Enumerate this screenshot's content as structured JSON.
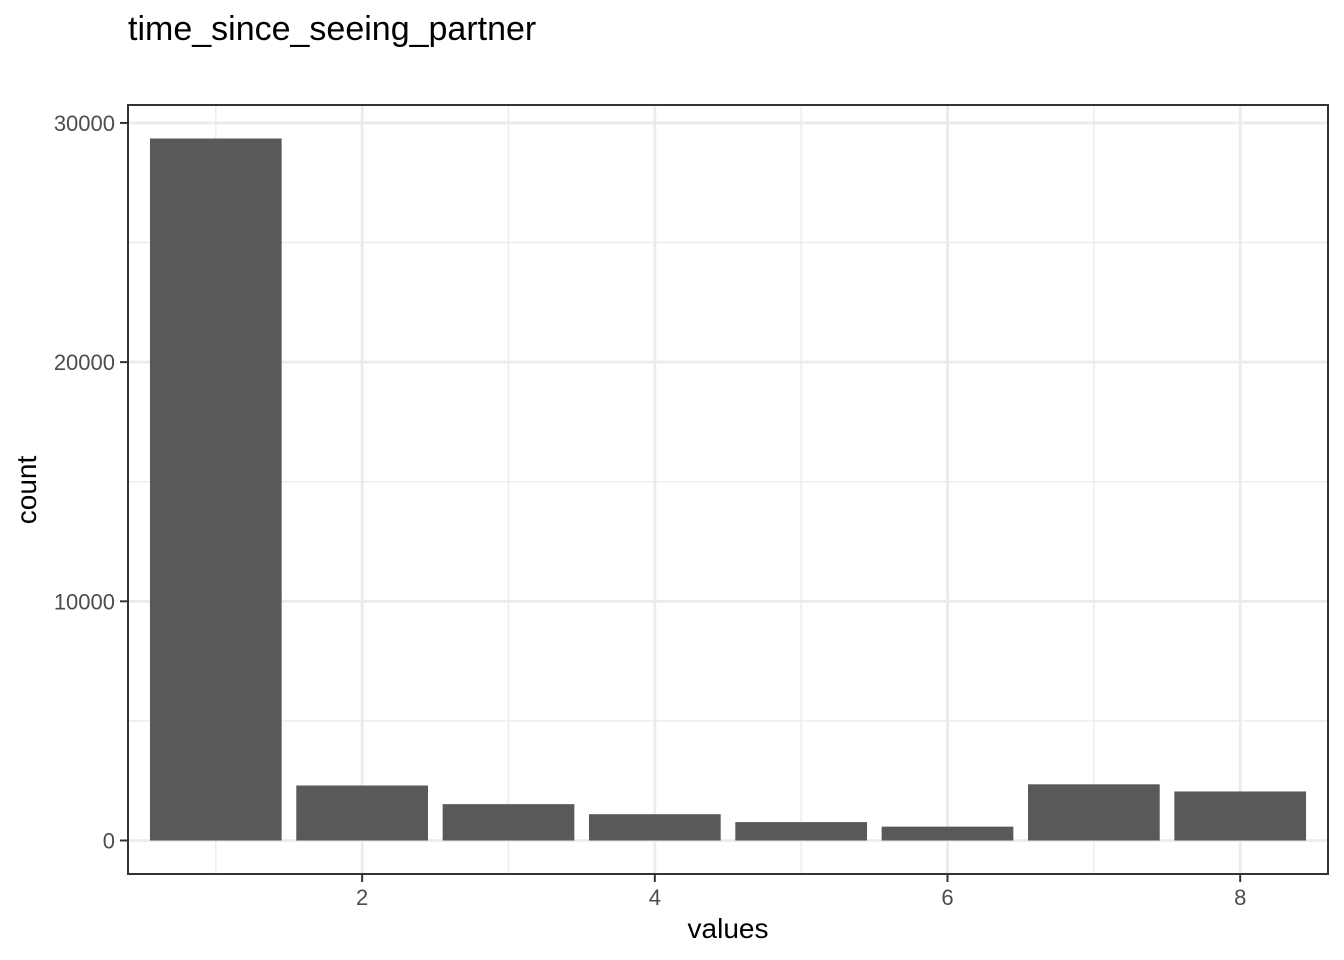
{
  "chart_data": {
    "type": "bar",
    "title": "time_since_seeing_partner",
    "xlabel": "values",
    "ylabel": "count",
    "x": [
      1,
      2,
      3,
      4,
      5,
      6,
      7,
      8
    ],
    "values": [
      29350,
      2300,
      1520,
      1100,
      770,
      580,
      2350,
      2050
    ],
    "xlim": [
      0.4,
      8.6
    ],
    "ylim": [
      -1400,
      30750
    ],
    "x_ticks": [
      2,
      4,
      6,
      8
    ],
    "x_tick_labels": [
      "2",
      "4",
      "6",
      "8"
    ],
    "y_ticks": [
      0,
      10000,
      20000,
      30000
    ],
    "y_tick_labels": [
      "0",
      "10000",
      "20000",
      "30000"
    ],
    "grid": true,
    "bar_color": "#595959",
    "panel_border_color": "#333333",
    "grid_color": "#ebebeb"
  }
}
